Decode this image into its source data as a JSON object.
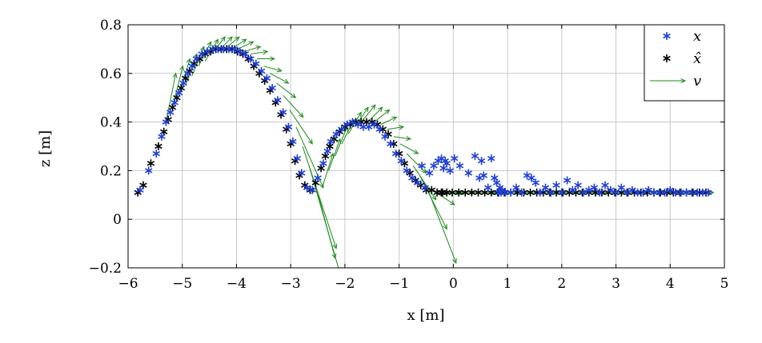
{
  "chart_data": {
    "type": "scatter",
    "xlabel": "x [m]",
    "ylabel": "z [m]",
    "xlim": [
      -6,
      5
    ],
    "ylim": [
      -0.2,
      0.8
    ],
    "grid": true,
    "legend_position": "top-right",
    "xticks": [
      "−6",
      "−5",
      "−4",
      "−3",
      "−2",
      "−1",
      "0",
      "1",
      "2",
      "3",
      "4",
      "5"
    ],
    "yticks": [
      "−0.2",
      "0",
      "0.2",
      "0.4",
      "0.6",
      "0.8"
    ],
    "legend": [
      {
        "label": "x",
        "symbol": "asterisk",
        "color": "#1f3fd6"
      },
      {
        "label": "x̂",
        "symbol": "asterisk",
        "color": "#000000"
      },
      {
        "label": "v",
        "symbol": "arrow",
        "color": "#1a8a1a"
      }
    ],
    "colors": {
      "measured": "#1f3fd6",
      "estimated": "#000000",
      "velocity": "#1a8a1a",
      "grid": "#c8c8c8"
    },
    "series": [
      {
        "name": "x",
        "x": [
          -5.78,
          -5.62,
          -5.48,
          -5.38,
          -5.3,
          -5.22,
          -5.14,
          -5.06,
          -4.98,
          -4.9,
          -4.82,
          -4.74,
          -4.64,
          -4.54,
          -4.44,
          -4.34,
          -4.24,
          -4.14,
          -4.04,
          -3.94,
          -3.84,
          -3.74,
          -3.64,
          -3.54,
          -3.44,
          -3.34,
          -3.24,
          -3.14,
          -3.04,
          -2.96,
          -2.88,
          -2.8,
          -2.7,
          -2.6,
          -2.5,
          -2.4,
          -2.32,
          -2.26,
          -2.16,
          -2.06,
          -1.96,
          -1.86,
          -1.76,
          -1.66,
          -1.56,
          -1.46,
          -1.36,
          -1.26,
          -1.16,
          -1.06,
          -0.96,
          -0.86,
          -0.76,
          -0.66,
          -0.58,
          -0.52,
          -0.44,
          -0.36,
          -0.28,
          -0.22,
          -0.18,
          -0.15,
          -0.12,
          -0.06,
          0.02,
          0.12,
          0.28,
          0.4,
          0.48,
          0.52,
          0.56,
          0.64,
          0.7,
          0.76,
          0.8,
          0.84,
          0.86,
          0.88,
          0.9,
          0.96,
          1.06,
          1.16,
          1.26,
          1.36,
          1.44,
          1.52,
          1.6,
          1.7,
          1.8,
          1.9,
          2.0,
          2.1,
          2.2,
          2.3,
          2.4,
          2.5,
          2.6,
          2.7,
          2.8,
          2.9,
          3.0,
          3.1,
          3.2,
          3.3,
          3.4,
          3.5,
          3.6,
          3.7,
          3.8,
          3.9,
          4.0,
          4.1,
          4.2,
          4.3,
          4.4,
          4.5,
          4.6,
          4.7
        ],
        "y": [
          0.12,
          0.2,
          0.27,
          0.34,
          0.4,
          0.44,
          0.48,
          0.52,
          0.56,
          0.6,
          0.63,
          0.66,
          0.68,
          0.69,
          0.7,
          0.7,
          0.7,
          0.7,
          0.7,
          0.69,
          0.68,
          0.66,
          0.64,
          0.61,
          0.58,
          0.54,
          0.49,
          0.44,
          0.38,
          0.32,
          0.25,
          0.19,
          0.13,
          0.12,
          0.17,
          0.23,
          0.28,
          0.32,
          0.35,
          0.37,
          0.39,
          0.4,
          0.39,
          0.38,
          0.38,
          0.39,
          0.37,
          0.34,
          0.31,
          0.27,
          0.24,
          0.2,
          0.17,
          0.15,
          0.22,
          0.13,
          0.19,
          0.22,
          0.24,
          0.25,
          0.21,
          0.24,
          0.23,
          0.2,
          0.25,
          0.22,
          0.19,
          0.26,
          0.17,
          0.24,
          0.18,
          0.13,
          0.25,
          0.17,
          0.15,
          0.11,
          0.13,
          0.11,
          0.12,
          0.11,
          0.11,
          0.13,
          0.11,
          0.18,
          0.17,
          0.15,
          0.11,
          0.13,
          0.11,
          0.14,
          0.11,
          0.16,
          0.12,
          0.14,
          0.11,
          0.12,
          0.13,
          0.11,
          0.14,
          0.12,
          0.11,
          0.13,
          0.11,
          0.12,
          0.11,
          0.11,
          0.12,
          0.11,
          0.11,
          0.11,
          0.12,
          0.11,
          0.11,
          0.11,
          0.11,
          0.11,
          0.11,
          0.11
        ]
      },
      {
        "name": "x̂",
        "x": [
          -5.82,
          -5.72,
          -5.58,
          -5.44,
          -5.34,
          -5.26,
          -5.18,
          -5.1,
          -5.02,
          -4.94,
          -4.86,
          -4.78,
          -4.68,
          -4.58,
          -4.48,
          -4.38,
          -4.28,
          -4.18,
          -4.08,
          -3.98,
          -3.88,
          -3.78,
          -3.68,
          -3.58,
          -3.48,
          -3.38,
          -3.28,
          -3.18,
          -3.08,
          -3.0,
          -2.92,
          -2.84,
          -2.74,
          -2.64,
          -2.54,
          -2.44,
          -2.36,
          -2.28,
          -2.2,
          -2.1,
          -2.0,
          -1.9,
          -1.8,
          -1.7,
          -1.6,
          -1.5,
          -1.4,
          -1.3,
          -1.2,
          -1.1,
          -1.0,
          -0.9,
          -0.8,
          -0.7,
          -0.6,
          -0.5,
          -0.4,
          -0.3,
          -0.22,
          -0.2,
          -0.12,
          -0.02,
          0.1,
          0.22,
          0.34,
          0.46,
          0.58,
          0.7,
          0.82,
          0.94,
          1.06,
          1.18,
          1.3,
          1.42,
          1.54,
          1.66,
          1.78,
          1.9,
          2.02,
          2.14,
          2.26,
          2.38,
          2.5,
          2.62,
          2.74,
          2.86,
          2.98,
          3.1,
          3.22,
          3.34,
          3.46,
          3.58,
          3.7,
          3.82,
          3.94,
          4.06,
          4.18,
          4.3,
          4.42,
          4.54,
          4.66
        ],
        "y": [
          0.11,
          0.14,
          0.23,
          0.3,
          0.36,
          0.41,
          0.46,
          0.5,
          0.54,
          0.58,
          0.61,
          0.64,
          0.66,
          0.68,
          0.69,
          0.7,
          0.7,
          0.7,
          0.7,
          0.69,
          0.68,
          0.66,
          0.63,
          0.6,
          0.57,
          0.53,
          0.48,
          0.43,
          0.37,
          0.31,
          0.24,
          0.18,
          0.14,
          0.12,
          0.15,
          0.21,
          0.26,
          0.3,
          0.33,
          0.36,
          0.38,
          0.39,
          0.4,
          0.4,
          0.4,
          0.4,
          0.39,
          0.37,
          0.35,
          0.31,
          0.27,
          0.23,
          0.19,
          0.16,
          0.14,
          0.12,
          0.12,
          0.11,
          0.11,
          0.11,
          0.11,
          0.11,
          0.11,
          0.11,
          0.11,
          0.11,
          0.11,
          0.11,
          0.11,
          0.11,
          0.11,
          0.11,
          0.11,
          0.11,
          0.11,
          0.11,
          0.11,
          0.11,
          0.11,
          0.11,
          0.11,
          0.11,
          0.11,
          0.11,
          0.11,
          0.11,
          0.11,
          0.11,
          0.11,
          0.11,
          0.11,
          0.11,
          0.11,
          0.11,
          0.11,
          0.11,
          0.11,
          0.11,
          0.11,
          0.11,
          0.11
        ]
      },
      {
        "name": "v",
        "x": [
          -5.3,
          -5.18,
          -5.06,
          -4.94,
          -4.82,
          -4.7,
          -4.58,
          -4.46,
          -4.34,
          -4.22,
          -4.1,
          -3.98,
          -3.86,
          -3.74,
          -3.62,
          -3.5,
          -3.38,
          -3.26,
          -3.14,
          -3.02,
          -2.9,
          -2.78,
          -2.66,
          -2.54,
          -2.42,
          -2.3,
          -2.18,
          -2.06,
          -1.94,
          -1.82,
          -1.7,
          -1.58,
          -1.46,
          -1.34,
          -1.22,
          -1.1,
          -0.98,
          -0.86,
          -0.74,
          -0.62,
          -0.5,
          -0.38,
          -0.26,
          -0.2,
          0.0,
          0.4,
          0.8,
          1.2,
          1.6,
          2.0,
          2.4,
          2.8,
          3.2,
          3.6,
          4.0,
          4.4
        ],
        "y": [
          0.4,
          0.46,
          0.51,
          0.55,
          0.59,
          0.63,
          0.65,
          0.68,
          0.69,
          0.7,
          0.7,
          0.7,
          0.69,
          0.68,
          0.66,
          0.63,
          0.6,
          0.56,
          0.51,
          0.45,
          0.38,
          0.3,
          0.22,
          0.14,
          0.13,
          0.2,
          0.26,
          0.31,
          0.35,
          0.38,
          0.4,
          0.4,
          0.4,
          0.39,
          0.37,
          0.34,
          0.31,
          0.27,
          0.22,
          0.18,
          0.14,
          0.12,
          0.11,
          0.11,
          0.11,
          0.11,
          0.11,
          0.11,
          0.11,
          0.11,
          0.11,
          0.11,
          0.11,
          0.11,
          0.11,
          0.11
        ],
        "u": [
          0.18,
          0.19,
          0.2,
          0.21,
          0.22,
          0.23,
          0.24,
          0.25,
          0.26,
          0.27,
          0.28,
          0.29,
          0.3,
          0.31,
          0.32,
          0.33,
          0.34,
          0.35,
          0.37,
          0.42,
          0.5,
          0.62,
          0.72,
          0.36,
          0.2,
          0.21,
          0.22,
          0.23,
          0.24,
          0.25,
          0.26,
          0.27,
          0.28,
          0.29,
          0.3,
          0.31,
          0.33,
          0.36,
          0.42,
          0.5,
          0.55,
          0.4,
          0.4,
          0.4,
          0.4,
          0.4,
          0.4,
          0.4,
          0.4,
          0.4,
          0.4,
          0.4,
          0.4,
          0.4,
          0.4,
          0.4
        ],
        "w": [
          0.2,
          0.17,
          0.15,
          0.13,
          0.12,
          0.1,
          0.09,
          0.07,
          0.06,
          0.05,
          0.04,
          0.03,
          0.02,
          0.01,
          0.0,
          -0.02,
          -0.04,
          -0.06,
          -0.09,
          -0.14,
          -0.25,
          -0.42,
          -0.56,
          -0.3,
          0.14,
          0.13,
          0.12,
          0.1,
          0.09,
          0.08,
          0.07,
          0.06,
          0.05,
          0.03,
          0.01,
          -0.01,
          -0.04,
          -0.08,
          -0.14,
          -0.22,
          -0.32,
          -0.06,
          0.0,
          0.0,
          0.0,
          0.0,
          0.0,
          0.0,
          0.0,
          0.0,
          0.0,
          0.0,
          0.0,
          0.0,
          0.0,
          0.0
        ]
      }
    ]
  }
}
